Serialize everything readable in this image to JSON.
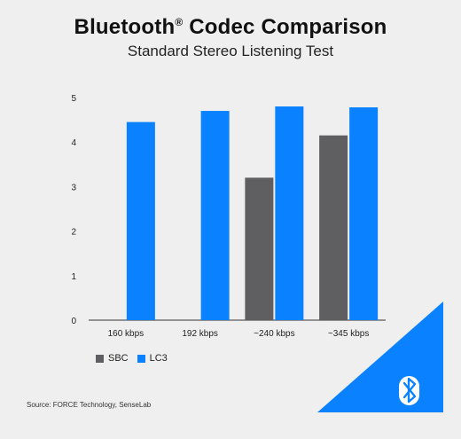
{
  "title": "Bluetooth",
  "title_mark": "®",
  "title_rest": " Codec Comparison",
  "subtitle": "Standard Stereo Listening Test",
  "source": "Source: FORCE Technology, SenseLab",
  "colors": {
    "sbc": "#5f5f61",
    "lc3": "#0a82ff",
    "background": "#efefef",
    "corner": "#0a82ff"
  },
  "brand_icon": "bluetooth-icon",
  "chart_data": {
    "type": "bar",
    "categories": [
      "160 kbps",
      "192 kbps",
      "~240 kbps",
      "~345 kbps"
    ],
    "series": [
      {
        "name": "SBC",
        "values": [
          null,
          null,
          3.2,
          4.15
        ]
      },
      {
        "name": "LC3",
        "values": [
          4.45,
          4.7,
          4.8,
          4.78
        ]
      }
    ],
    "ylim": [
      0,
      5
    ],
    "yticks": [
      "0",
      "1",
      "2",
      "3",
      "4",
      "5"
    ],
    "grid": false,
    "legend": "bottom-left"
  }
}
